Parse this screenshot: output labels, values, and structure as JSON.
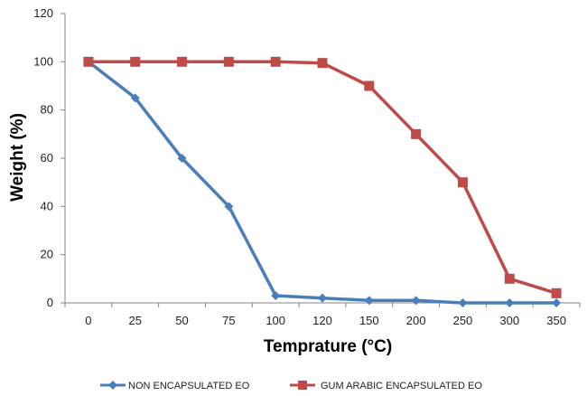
{
  "chart_data": {
    "type": "line",
    "title": "",
    "xlabel": "Temprature (°C)",
    "ylabel": "Weight  (%)",
    "ylim": [
      0,
      120
    ],
    "ytick_step": 20,
    "grid": false,
    "legend_placement": "bottom",
    "categories": [
      "0",
      "25",
      "50",
      "75",
      "100",
      "120",
      "150",
      "200",
      "250",
      "300",
      "350"
    ],
    "y_ticks": [
      "0",
      "20",
      "40",
      "60",
      "80",
      "100",
      "120"
    ],
    "series": [
      {
        "name": "NON ENCAPSULATED EO",
        "color": "#4a7ebb",
        "marker": "diamond",
        "values": [
          100,
          85,
          60,
          40,
          3,
          2,
          1,
          1,
          0,
          0,
          0
        ]
      },
      {
        "name": "GUM ARABIC ENCAPSULATED EO",
        "color": "#be4b48",
        "marker": "square",
        "values": [
          100,
          100,
          100,
          100,
          100,
          99.5,
          90,
          70,
          50,
          10,
          4
        ]
      }
    ]
  }
}
